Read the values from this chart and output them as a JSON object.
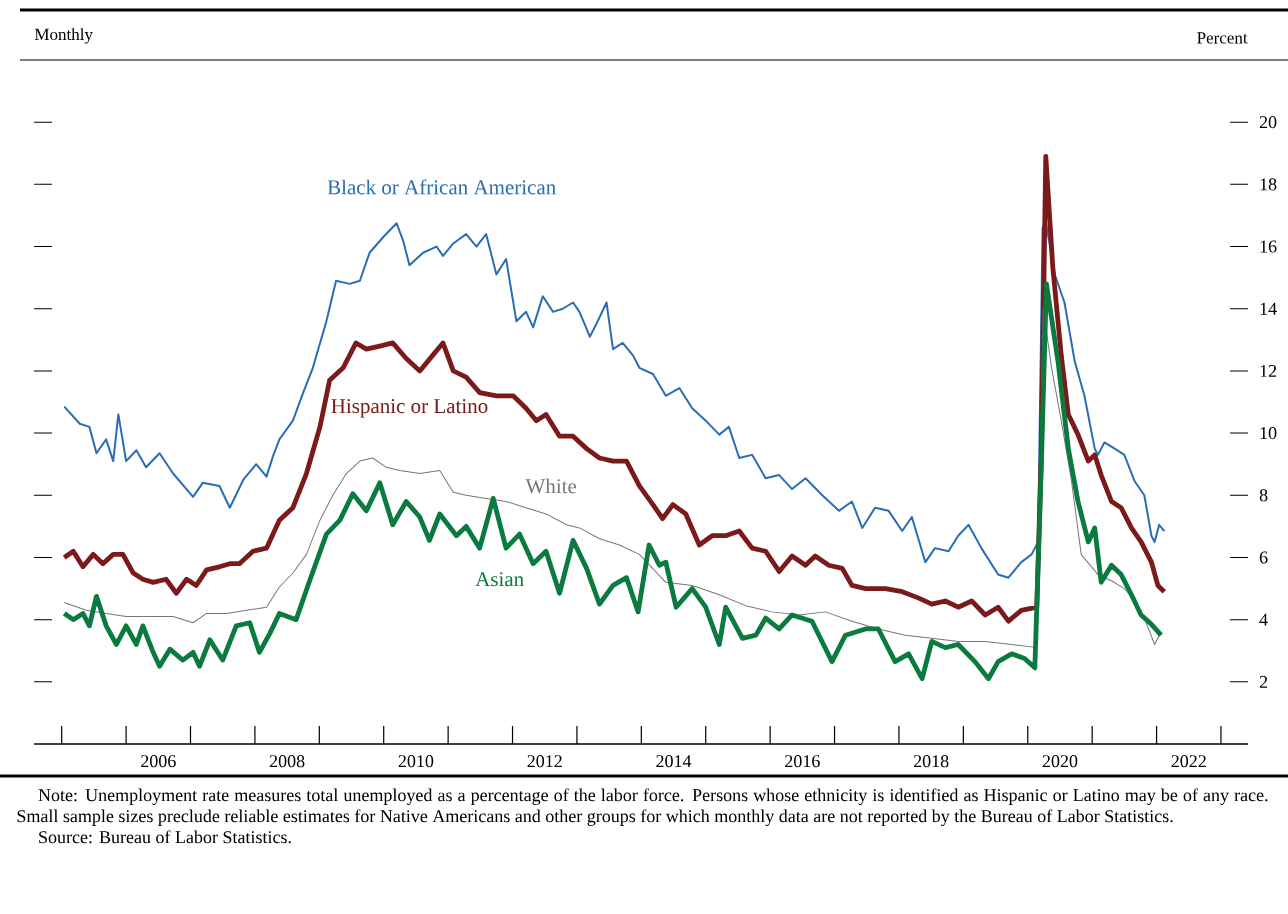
{
  "chart_data": {
    "type": "line",
    "ylabel": "Percent",
    "annotations": [
      "Monthly",
      "Note: Unemployment rate measures total unemployed as a percentage of the labor force. Persons whose ethnicity is identified as Hispanic or Latino may be of any race. Small sample sizes preclude reliable estimates for Native Americans and other groups for which monthly data are not reported by the Bureau of Labor Statistics.",
      "Source: Bureau of Labor Statistics."
    ],
    "xlim": [
      2004.57,
      2023.42
    ],
    "xticks": [
      {
        "value": 2005,
        "label": null
      },
      {
        "value": 2006,
        "label": null
      },
      {
        "value": 2007,
        "label": null
      },
      {
        "value": 2008,
        "label": null
      },
      {
        "value": 2009,
        "label": null
      },
      {
        "value": 2010,
        "label": null
      },
      {
        "value": 2011,
        "label": null
      },
      {
        "value": 2012,
        "label": null
      },
      {
        "value": 2013,
        "label": null
      },
      {
        "value": 2014,
        "label": null
      },
      {
        "value": 2015,
        "label": null
      },
      {
        "value": 2016,
        "label": null
      },
      {
        "value": 2017,
        "label": null
      },
      {
        "value": 2018,
        "label": null
      },
      {
        "value": 2019,
        "label": null
      },
      {
        "value": 2020,
        "label": null
      },
      {
        "value": 2021,
        "label": null
      },
      {
        "value": 2022,
        "label": null
      },
      {
        "value": 2023,
        "label": null
      },
      {
        "value": 2006.5,
        "label": "2006"
      },
      {
        "value": 2008.5,
        "label": "2008"
      },
      {
        "value": 2010.5,
        "label": "2010"
      },
      {
        "value": 2012.5,
        "label": "2012"
      },
      {
        "value": 2014.5,
        "label": "2014"
      },
      {
        "value": 2016.5,
        "label": "2016"
      },
      {
        "value": 2018.5,
        "label": "2018"
      },
      {
        "value": 2020.5,
        "label": "2020"
      },
      {
        "value": 2022.5,
        "label": "2022"
      }
    ],
    "ylim": [
      0,
      22
    ],
    "yticks": [
      2,
      4,
      6,
      8,
      10,
      12,
      14,
      16,
      18,
      20
    ],
    "grid": false,
    "marker": "none",
    "line_style": "solid",
    "series": [
      {
        "name": "Black or African American",
        "color": "#2a6db5",
        "x": [
          2005.04,
          2005.28,
          2005.43,
          2005.54,
          2005.69,
          2005.8,
          2005.88,
          2006.0,
          2006.16,
          2006.31,
          2006.52,
          2006.73,
          2007.04,
          2007.19,
          2007.45,
          2007.61,
          2007.82,
          2008.02,
          2008.18,
          2008.28,
          2008.38,
          2008.59,
          2008.75,
          2008.9,
          2009.11,
          2009.26,
          2009.47,
          2009.63,
          2009.78,
          2009.99,
          2010.2,
          2010.3,
          2010.4,
          2010.61,
          2010.82,
          2010.92,
          2011.08,
          2011.28,
          2011.44,
          2011.59,
          2011.75,
          2011.9,
          2012.06,
          2012.21,
          2012.32,
          2012.47,
          2012.63,
          2012.78,
          2012.94,
          2013.04,
          2013.2,
          2013.3,
          2013.46,
          2013.56,
          2013.71,
          2013.87,
          2013.97,
          2014.18,
          2014.38,
          2014.59,
          2014.79,
          2015.0,
          2015.21,
          2015.36,
          2015.52,
          2015.72,
          2015.93,
          2016.14,
          2016.34,
          2016.55,
          2016.81,
          2017.07,
          2017.27,
          2017.43,
          2017.63,
          2017.84,
          2018.05,
          2018.2,
          2018.41,
          2018.56,
          2018.77,
          2018.92,
          2019.08,
          2019.28,
          2019.54,
          2019.7,
          2019.9,
          2020.06,
          2020.16,
          2020.23,
          2020.28,
          2020.42,
          2020.57,
          2020.73,
          2020.88,
          2021.04,
          2021.09,
          2021.19,
          2021.35,
          2021.5,
          2021.66,
          2021.81,
          2021.92,
          2021.97,
          2022.04,
          2022.12
        ],
        "values": [
          10.85,
          10.3,
          10.2,
          9.35,
          9.8,
          9.1,
          10.6,
          9.1,
          9.45,
          8.9,
          9.35,
          8.7,
          7.95,
          8.4,
          8.3,
          7.6,
          8.5,
          9.0,
          8.6,
          9.25,
          9.8,
          10.4,
          11.3,
          12.1,
          13.6,
          14.9,
          14.8,
          14.9,
          15.8,
          16.3,
          16.75,
          16.2,
          15.4,
          15.8,
          16.0,
          15.7,
          16.1,
          16.4,
          16.0,
          16.4,
          15.1,
          15.6,
          13.6,
          13.9,
          13.4,
          14.4,
          13.9,
          14.0,
          14.2,
          13.9,
          13.1,
          13.5,
          14.2,
          12.7,
          12.9,
          12.5,
          12.1,
          11.9,
          11.2,
          11.45,
          10.8,
          10.4,
          9.95,
          10.2,
          9.2,
          9.3,
          8.55,
          8.65,
          8.2,
          8.55,
          8.0,
          7.5,
          7.8,
          6.95,
          7.6,
          7.5,
          6.85,
          7.3,
          5.85,
          6.3,
          6.2,
          6.7,
          7.05,
          6.3,
          5.45,
          5.35,
          5.85,
          6.1,
          6.5,
          16.6,
          16.8,
          15.1,
          14.2,
          12.3,
          11.2,
          9.5,
          9.3,
          9.7,
          9.5,
          9.3,
          8.45,
          8.0,
          6.7,
          6.5,
          7.05,
          6.85
        ]
      },
      {
        "name": "Hispanic or Latino",
        "color": "#7b1a1a",
        "x": [
          2005.04,
          2005.18,
          2005.33,
          2005.49,
          2005.64,
          2005.8,
          2005.95,
          2006.11,
          2006.26,
          2006.42,
          2006.62,
          2006.78,
          2006.94,
          2007.09,
          2007.25,
          2007.45,
          2007.61,
          2007.76,
          2007.97,
          2008.18,
          2008.38,
          2008.59,
          2008.8,
          2009.01,
          2009.16,
          2009.37,
          2009.57,
          2009.73,
          2009.94,
          2010.14,
          2010.35,
          2010.56,
          2010.76,
          2010.92,
          2011.08,
          2011.28,
          2011.49,
          2011.75,
          2012.01,
          2012.21,
          2012.37,
          2012.52,
          2012.73,
          2012.94,
          2013.15,
          2013.35,
          2013.56,
          2013.77,
          2013.97,
          2014.18,
          2014.33,
          2014.49,
          2014.69,
          2014.9,
          2015.1,
          2015.31,
          2015.52,
          2015.72,
          2015.93,
          2016.14,
          2016.34,
          2016.55,
          2016.7,
          2016.91,
          2017.12,
          2017.27,
          2017.48,
          2017.79,
          2018.05,
          2018.3,
          2018.51,
          2018.72,
          2018.92,
          2019.13,
          2019.34,
          2019.54,
          2019.7,
          2019.9,
          2020.14,
          2020.21,
          2020.28,
          2020.39,
          2020.52,
          2020.63,
          2020.78,
          2020.94,
          2021.04,
          2021.14,
          2021.3,
          2021.45,
          2021.61,
          2021.76,
          2021.92,
          2022.02,
          2022.12
        ],
        "values": [
          6.0,
          6.2,
          5.7,
          6.1,
          5.8,
          6.1,
          6.1,
          5.5,
          5.3,
          5.2,
          5.3,
          4.85,
          5.3,
          5.1,
          5.6,
          5.7,
          5.8,
          5.8,
          6.2,
          6.3,
          7.2,
          7.6,
          8.7,
          10.2,
          11.7,
          12.1,
          12.9,
          12.7,
          12.8,
          12.9,
          12.4,
          12.0,
          12.5,
          12.9,
          12.0,
          11.8,
          11.3,
          11.2,
          11.2,
          10.8,
          10.4,
          10.6,
          9.9,
          9.9,
          9.5,
          9.2,
          9.1,
          9.1,
          8.3,
          7.7,
          7.25,
          7.7,
          7.4,
          6.4,
          6.7,
          6.7,
          6.85,
          6.3,
          6.2,
          5.55,
          6.05,
          5.75,
          6.05,
          5.75,
          5.65,
          5.1,
          5.0,
          5.0,
          4.9,
          4.7,
          4.5,
          4.6,
          4.4,
          4.6,
          4.15,
          4.4,
          3.95,
          4.3,
          4.4,
          9.3,
          18.9,
          15.3,
          12.5,
          10.6,
          9.95,
          9.1,
          9.3,
          8.65,
          7.8,
          7.6,
          6.95,
          6.5,
          5.85,
          5.1,
          4.9
        ]
      },
      {
        "name": "White",
        "color": "#777777",
        "x": [
          2005.04,
          2005.38,
          2005.69,
          2006.0,
          2006.31,
          2006.73,
          2007.04,
          2007.25,
          2007.56,
          2007.87,
          2008.18,
          2008.38,
          2008.59,
          2008.8,
          2009.01,
          2009.21,
          2009.42,
          2009.63,
          2009.83,
          2010.04,
          2010.25,
          2010.56,
          2010.87,
          2011.08,
          2011.28,
          2011.59,
          2011.9,
          2012.21,
          2012.52,
          2012.84,
          2013.04,
          2013.35,
          2013.66,
          2013.97,
          2014.38,
          2014.79,
          2015.21,
          2015.62,
          2016.03,
          2016.45,
          2016.86,
          2017.27,
          2017.68,
          2018.1,
          2018.51,
          2018.92,
          2019.34,
          2019.75,
          2020.14,
          2020.24,
          2020.37,
          2020.52,
          2020.68,
          2020.83,
          2021.09,
          2021.3,
          2021.5,
          2021.66,
          2021.81,
          2021.97,
          2022.07
        ],
        "values": [
          4.55,
          4.3,
          4.2,
          4.1,
          4.1,
          4.1,
          3.9,
          4.2,
          4.2,
          4.3,
          4.4,
          5.05,
          5.5,
          6.1,
          7.2,
          8.0,
          8.7,
          9.1,
          9.2,
          8.9,
          8.8,
          8.7,
          8.8,
          8.1,
          8.0,
          7.9,
          7.8,
          7.6,
          7.4,
          7.05,
          6.95,
          6.6,
          6.4,
          6.1,
          5.2,
          5.1,
          4.8,
          4.45,
          4.25,
          4.15,
          4.25,
          3.95,
          3.7,
          3.5,
          3.4,
          3.3,
          3.3,
          3.2,
          3.1,
          14.0,
          12.1,
          10.4,
          8.45,
          6.1,
          5.45,
          5.25,
          5.0,
          4.6,
          4.05,
          3.2,
          3.6
        ]
      },
      {
        "name": "Asian",
        "color": "#0a7a3e",
        "x": [
          2005.04,
          2005.18,
          2005.33,
          2005.43,
          2005.54,
          2005.69,
          2005.85,
          2006.0,
          2006.16,
          2006.26,
          2006.42,
          2006.52,
          2006.68,
          2006.88,
          2007.04,
          2007.14,
          2007.3,
          2007.5,
          2007.71,
          2007.92,
          2008.07,
          2008.23,
          2008.38,
          2008.64,
          2008.85,
          2009.11,
          2009.32,
          2009.52,
          2009.73,
          2009.94,
          2010.14,
          2010.35,
          2010.56,
          2010.71,
          2010.87,
          2011.13,
          2011.28,
          2011.49,
          2011.7,
          2011.9,
          2012.11,
          2012.32,
          2012.52,
          2012.73,
          2012.94,
          2013.15,
          2013.35,
          2013.56,
          2013.77,
          2013.95,
          2014.12,
          2014.28,
          2014.38,
          2014.54,
          2014.79,
          2015.0,
          2015.21,
          2015.31,
          2015.57,
          2015.78,
          2015.93,
          2016.14,
          2016.34,
          2016.65,
          2016.96,
          2017.17,
          2017.48,
          2017.68,
          2017.94,
          2018.15,
          2018.36,
          2018.51,
          2018.72,
          2018.92,
          2019.18,
          2019.39,
          2019.54,
          2019.75,
          2019.95,
          2020.11,
          2020.21,
          2020.29,
          2020.47,
          2020.63,
          2020.78,
          2020.94,
          2021.04,
          2021.14,
          2021.3,
          2021.45,
          2021.61,
          2021.76,
          2021.92,
          2022.07
        ],
        "values": [
          4.2,
          4.0,
          4.2,
          3.8,
          4.75,
          3.8,
          3.2,
          3.8,
          3.2,
          3.8,
          2.95,
          2.5,
          3.05,
          2.7,
          2.95,
          2.5,
          3.35,
          2.7,
          3.8,
          3.9,
          2.95,
          3.55,
          4.2,
          4.0,
          5.25,
          6.75,
          7.2,
          8.05,
          7.5,
          8.4,
          7.05,
          7.8,
          7.3,
          6.55,
          7.4,
          6.7,
          7.0,
          6.3,
          7.9,
          6.3,
          6.75,
          5.8,
          6.2,
          4.85,
          6.55,
          5.65,
          4.5,
          5.1,
          5.35,
          4.25,
          6.4,
          5.75,
          5.85,
          4.4,
          5.0,
          4.4,
          3.2,
          4.4,
          3.4,
          3.5,
          4.05,
          3.7,
          4.15,
          3.95,
          2.65,
          3.5,
          3.7,
          3.7,
          2.65,
          2.9,
          2.1,
          3.3,
          3.1,
          3.2,
          2.65,
          2.1,
          2.65,
          2.9,
          2.75,
          2.45,
          8.9,
          14.8,
          12.3,
          9.5,
          7.8,
          6.5,
          6.95,
          5.2,
          5.75,
          5.45,
          4.8,
          4.15,
          3.85,
          3.5
        ]
      }
    ]
  }
}
